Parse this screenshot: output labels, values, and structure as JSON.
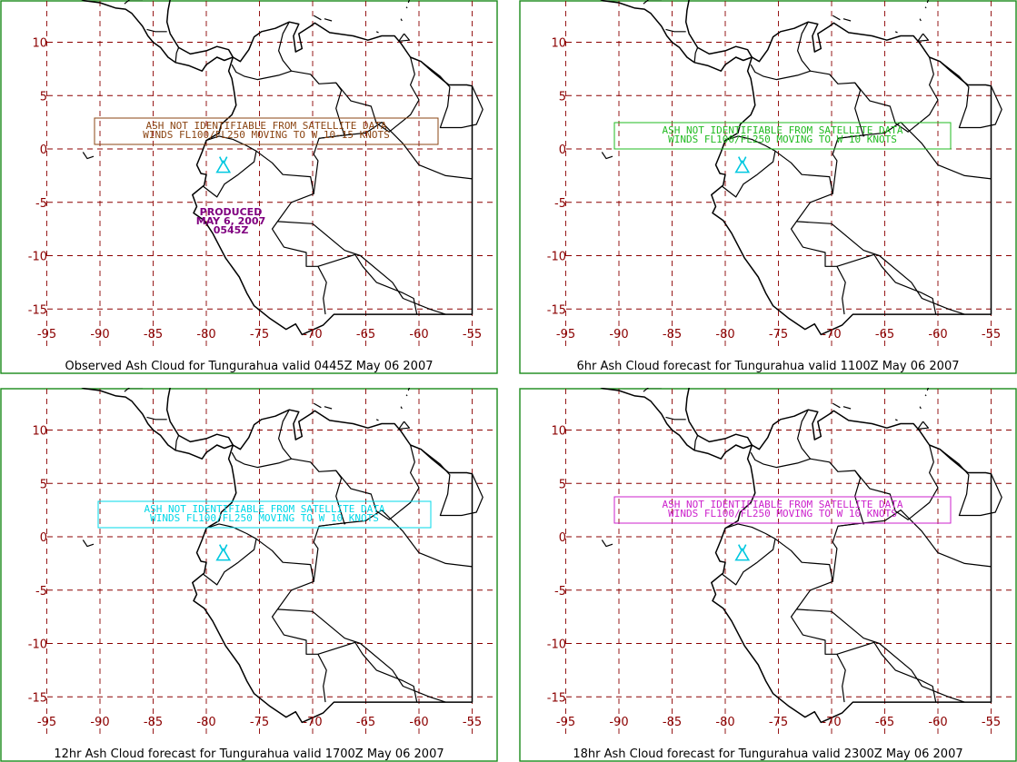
{
  "panels": [
    {
      "caption": "Observed Ash Cloud for Tungurahua valid 0445Z May 06 2007",
      "box_color": "#8b4513",
      "box_lines": [
        "ASH NOT IDENTIFIABLE FROM SATELLITE DATA",
        "WINDS FL100/FL250 MOVING TO W 10-15 KNOTS"
      ],
      "produced_lines": [
        "PRODUCED",
        "MAY 6, 2007",
        "0545Z"
      ]
    },
    {
      "caption": "6hr Ash Cloud forecast for Tungurahua valid 1100Z May 06 2007",
      "box_color": "#22bb22",
      "box_lines": [
        "ASH NOT IDENTIFIABLE FROM SATELLITE DATA",
        "WINDS FL100/FL250 MOVING TO W 10 KNOTS"
      ],
      "produced_lines": []
    },
    {
      "caption": "12hr Ash Cloud forecast for Tungurahua valid 1700Z May 06 2007",
      "box_color": "#00d8e8",
      "box_lines": [
        "ASH NOT IDENTIFIABLE FROM SATELLITE DATA",
        "WINDS FL100/FL250 MOVING TO W 10 KNOTS"
      ],
      "produced_lines": []
    },
    {
      "caption": "18hr Ash Cloud forecast for Tungurahua valid 2300Z May 06 2007",
      "box_color": "#cc22cc",
      "box_lines": [
        "ASH NOT IDENTIFIABLE FROM SATELLITE DATA",
        "WINDS FL100/FL250 MOVING TO W 10 KNOTS"
      ],
      "produced_lines": []
    }
  ],
  "x_ticks": [
    "-95",
    "-90",
    "-85",
    "-80",
    "-75",
    "-70",
    "-65",
    "-60",
    "-55"
  ],
  "y_ticks": [
    "10",
    "5",
    "0",
    "-5",
    "-10",
    "-15"
  ],
  "colors": {
    "grid": "#8b0000",
    "frame": "#1a8a1a",
    "tick_label": "#8b0000",
    "volcano": "#00c8e0",
    "produced": "#800080",
    "coast": "#000000"
  },
  "icons": {
    "volcano": "volcano-icon"
  }
}
